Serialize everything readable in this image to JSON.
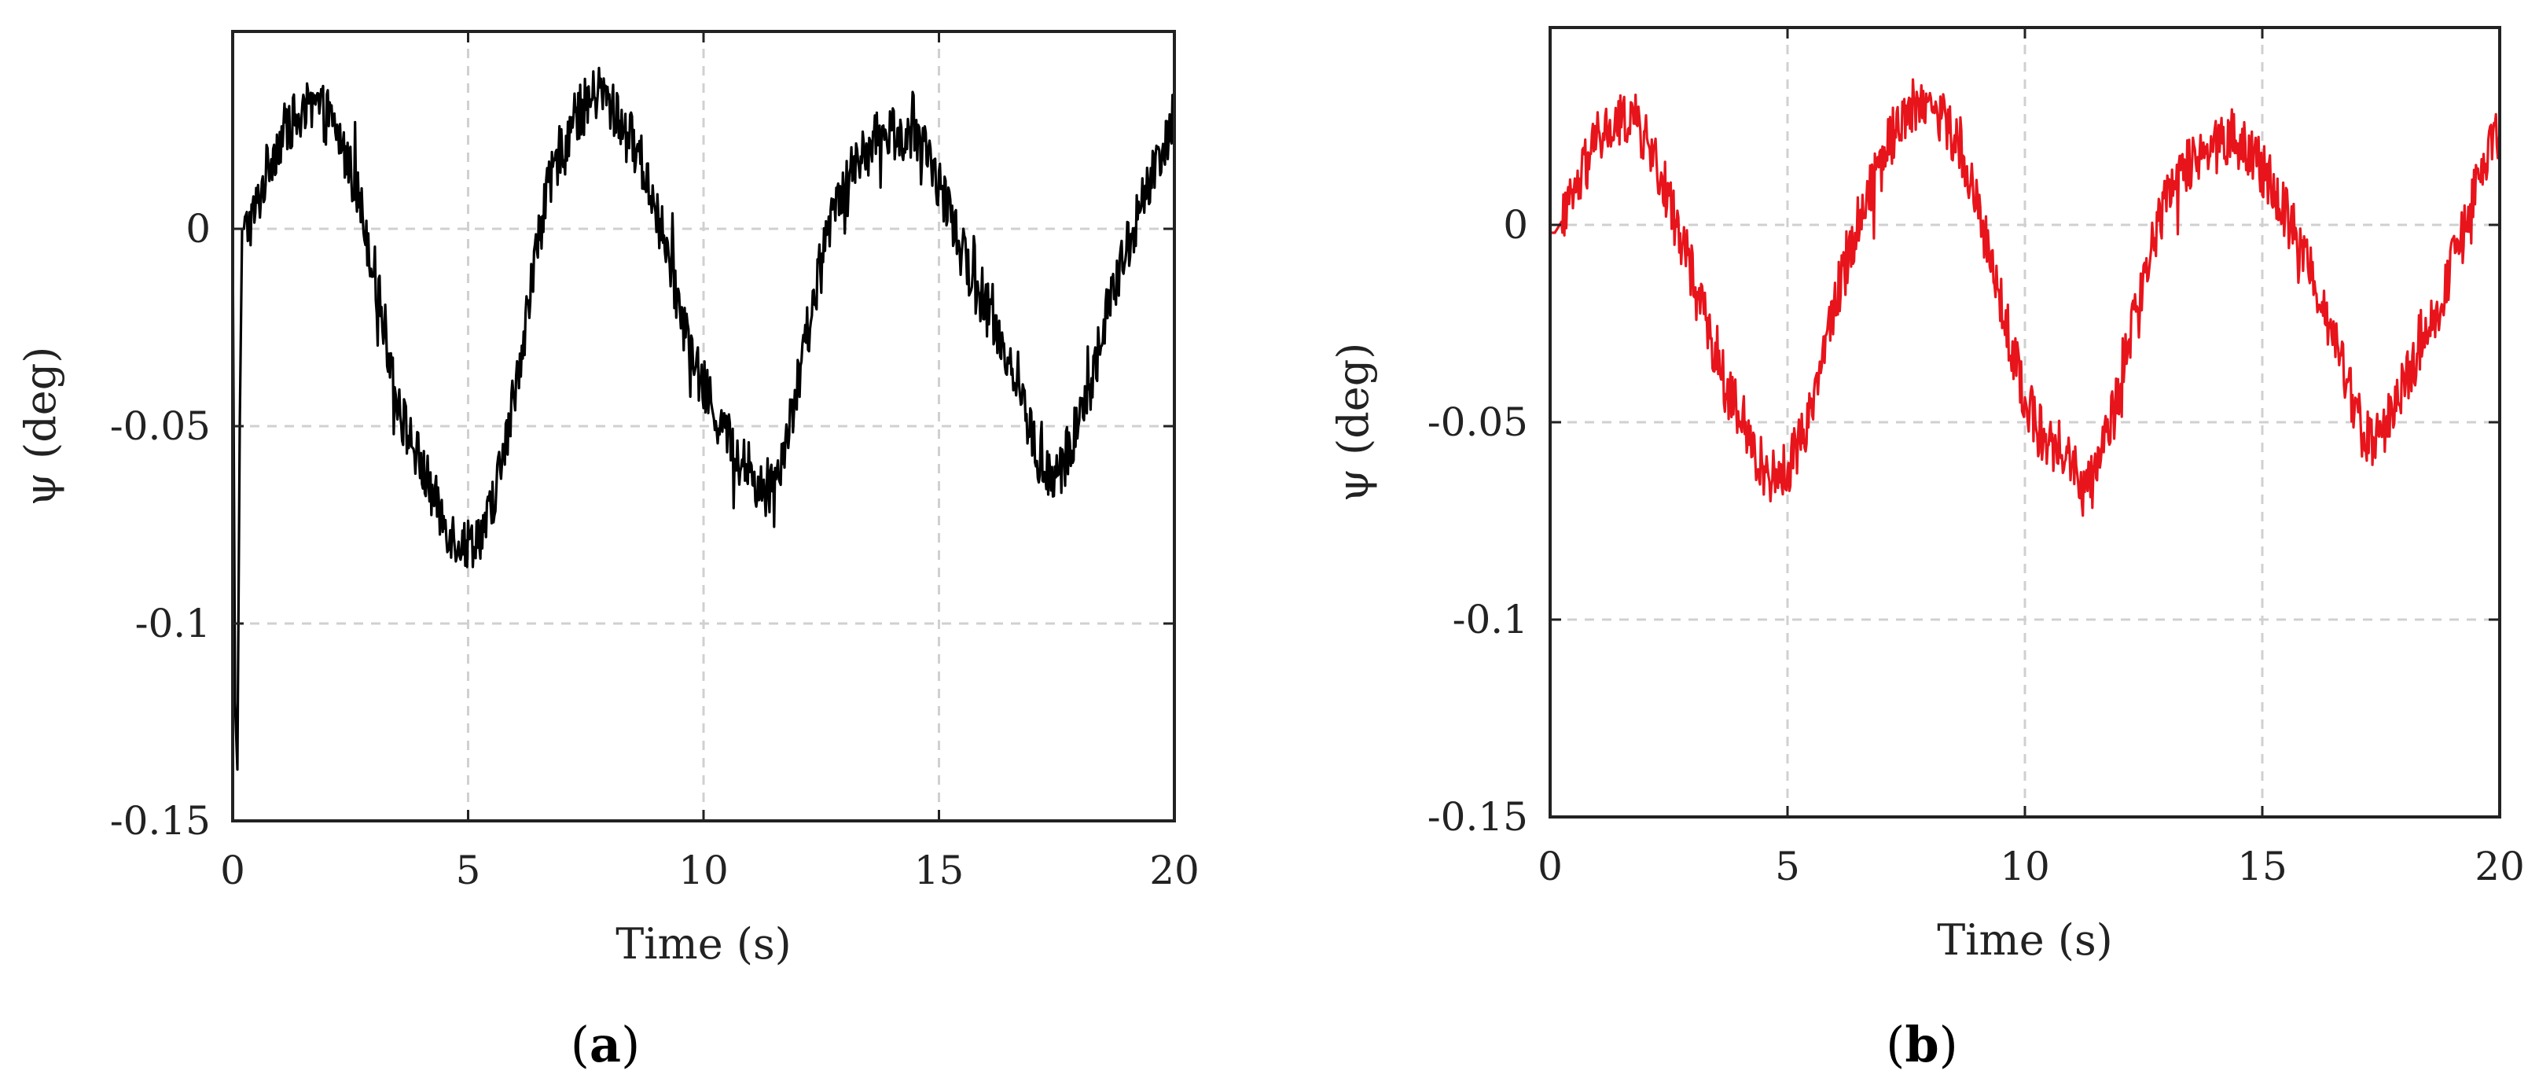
{
  "chart_data": [
    {
      "type": "line",
      "panel_label": "(a)",
      "panel_letter": "a",
      "xlabel": "Time (s)",
      "ylabel": "ψ (deg)",
      "xlim": [
        0,
        20
      ],
      "ylim": [
        -0.15,
        0.05
      ],
      "xticks": [
        0,
        5,
        10,
        15,
        20
      ],
      "yticks": [
        -0.15,
        -0.1,
        -0.05,
        0
      ],
      "xtick_labels": [
        "0",
        "5",
        "10",
        "15",
        "20"
      ],
      "ytick_labels": [
        "-0.15",
        "-0.1",
        "-0.05",
        "0"
      ],
      "grid": true,
      "series": [
        {
          "name": "ψ",
          "color": "#000000",
          "x": [
            0,
            0.05,
            0.1,
            0.15,
            0.2,
            0.3,
            0.5,
            0.8,
            1.2,
            1.6,
            1.8,
            2.2,
            2.6,
            3.0,
            3.3,
            3.6,
            4.0,
            4.4,
            4.7,
            5.0,
            5.4,
            5.8,
            6.2,
            6.6,
            7.0,
            7.4,
            7.8,
            8.2,
            8.6,
            9.0,
            9.4,
            9.8,
            10.2,
            10.6,
            11.0,
            11.3,
            11.6,
            12.0,
            12.4,
            12.8,
            13.2,
            13.6,
            14.0,
            14.4,
            14.8,
            15.2,
            15.6,
            16.0,
            16.4,
            16.8,
            17.1,
            17.4,
            17.8,
            18.2,
            18.6,
            19.0,
            19.4,
            19.8,
            20.0
          ],
          "y": [
            0.0,
            -0.12,
            -0.137,
            -0.05,
            0.0,
            0.0,
            0.005,
            0.018,
            0.027,
            0.028,
            0.031,
            0.025,
            0.012,
            -0.01,
            -0.03,
            -0.048,
            -0.06,
            -0.072,
            -0.078,
            -0.08,
            -0.075,
            -0.055,
            -0.025,
            0.005,
            0.022,
            0.03,
            0.035,
            0.028,
            0.02,
            0.005,
            -0.015,
            -0.035,
            -0.045,
            -0.055,
            -0.062,
            -0.068,
            -0.06,
            -0.04,
            -0.015,
            0.008,
            0.015,
            0.022,
            0.025,
            0.022,
            0.018,
            0.005,
            -0.01,
            -0.02,
            -0.03,
            -0.045,
            -0.058,
            -0.065,
            -0.055,
            -0.04,
            -0.02,
            -0.005,
            0.01,
            0.022,
            0.03
          ]
        }
      ]
    },
    {
      "type": "line",
      "panel_label": "(b)",
      "panel_letter": "b",
      "xlabel": "Time (s)",
      "ylabel": "ψ (deg)",
      "xlim": [
        0,
        20
      ],
      "ylim": [
        -0.15,
        0.05
      ],
      "xticks": [
        0,
        5,
        10,
        15,
        20
      ],
      "yticks": [
        -0.15,
        -0.1,
        -0.05,
        0
      ],
      "xtick_labels": [
        "0",
        "5",
        "10",
        "15",
        "20"
      ],
      "ytick_labels": [
        "-0.15",
        "-0.1",
        "-0.05",
        "0"
      ],
      "grid": true,
      "series": [
        {
          "name": "ψ",
          "color": "#e8141b",
          "x": [
            0,
            0.1,
            0.3,
            0.6,
            1.0,
            1.4,
            1.7,
            2.0,
            2.4,
            2.8,
            3.2,
            3.6,
            4.0,
            4.4,
            4.7,
            5.0,
            5.4,
            5.8,
            6.2,
            6.6,
            7.0,
            7.4,
            7.8,
            8.2,
            8.6,
            9.0,
            9.4,
            9.8,
            10.2,
            10.6,
            11.0,
            11.3,
            11.6,
            12.0,
            12.4,
            12.8,
            13.2,
            13.6,
            14.0,
            14.4,
            14.8,
            15.2,
            15.6,
            16.0,
            16.4,
            16.8,
            17.1,
            17.4,
            17.8,
            18.2,
            18.6,
            19.0,
            19.4,
            19.8,
            20.0
          ],
          "y": [
            -0.002,
            -0.002,
            0.002,
            0.01,
            0.022,
            0.025,
            0.028,
            0.022,
            0.01,
            -0.005,
            -0.02,
            -0.038,
            -0.05,
            -0.06,
            -0.064,
            -0.062,
            -0.05,
            -0.03,
            -0.01,
            0.005,
            0.018,
            0.027,
            0.032,
            0.028,
            0.02,
            0.005,
            -0.015,
            -0.035,
            -0.05,
            -0.058,
            -0.06,
            -0.068,
            -0.06,
            -0.04,
            -0.02,
            0.0,
            0.012,
            0.018,
            0.02,
            0.022,
            0.018,
            0.01,
            0.0,
            -0.01,
            -0.025,
            -0.04,
            -0.052,
            -0.055,
            -0.045,
            -0.035,
            -0.025,
            -0.01,
            0.005,
            0.018,
            0.024
          ]
        }
      ]
    }
  ]
}
